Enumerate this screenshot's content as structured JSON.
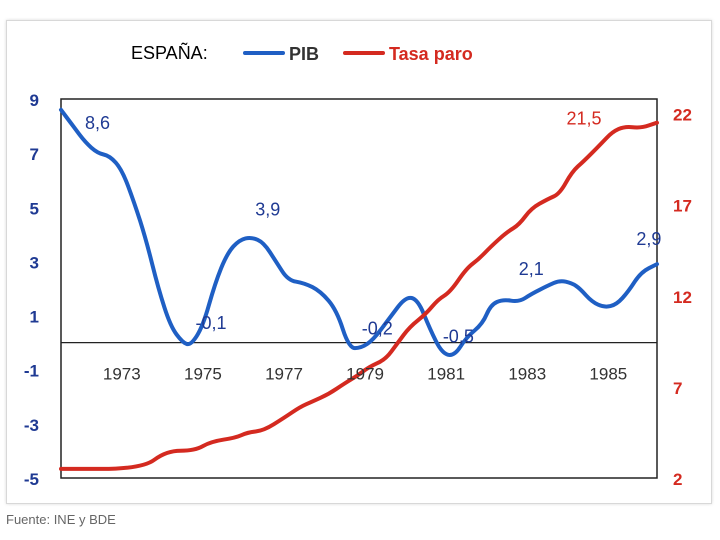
{
  "chart_data": {
    "type": "line",
    "title": "ESPAÑA:",
    "source": "Fuente: INE y BDE",
    "x_ticks": [
      "1973",
      "1975",
      "1977",
      "1979",
      "1981",
      "1983",
      "1985"
    ],
    "x_range": [
      1971.5,
      1986.2
    ],
    "y_left": {
      "min": -5,
      "max": 9,
      "ticks": [
        "9",
        "7",
        "5",
        "3",
        "1",
        "-1",
        "-3",
        "-5"
      ],
      "color": "#1F3A93"
    },
    "y_right": {
      "min": 2,
      "max": 22.8,
      "ticks": [
        "22",
        "17",
        "12",
        "7",
        "2"
      ],
      "color": "#D42A20"
    },
    "series": [
      {
        "name": "PIB",
        "axis": "left",
        "color": "#1F5FC4",
        "points": [
          [
            1971.5,
            8.6
          ],
          [
            1971.8,
            8.0
          ],
          [
            1972.1,
            7.4
          ],
          [
            1972.4,
            7.0
          ],
          [
            1972.7,
            6.9
          ],
          [
            1973.0,
            6.4
          ],
          [
            1973.3,
            5.2
          ],
          [
            1973.6,
            3.8
          ],
          [
            1973.9,
            2.0
          ],
          [
            1974.2,
            0.6
          ],
          [
            1974.5,
            0.0
          ],
          [
            1974.7,
            -0.1
          ],
          [
            1975.0,
            0.6
          ],
          [
            1975.3,
            2.2
          ],
          [
            1975.6,
            3.3
          ],
          [
            1975.9,
            3.8
          ],
          [
            1976.2,
            3.9
          ],
          [
            1976.5,
            3.7
          ],
          [
            1976.8,
            3.0
          ],
          [
            1977.1,
            2.3
          ],
          [
            1977.5,
            2.2
          ],
          [
            1977.9,
            1.9
          ],
          [
            1978.3,
            1.2
          ],
          [
            1978.6,
            -0.2
          ],
          [
            1978.9,
            -0.2
          ],
          [
            1979.2,
            0.1
          ],
          [
            1979.6,
            0.9
          ],
          [
            1980.0,
            1.7
          ],
          [
            1980.3,
            1.6
          ],
          [
            1980.6,
            0.5
          ],
          [
            1980.9,
            -0.4
          ],
          [
            1981.2,
            -0.5
          ],
          [
            1981.5,
            0.2
          ],
          [
            1981.9,
            0.7
          ],
          [
            1982.1,
            1.4
          ],
          [
            1982.4,
            1.6
          ],
          [
            1982.8,
            1.5
          ],
          [
            1983.1,
            1.8
          ],
          [
            1983.5,
            2.1
          ],
          [
            1983.8,
            2.3
          ],
          [
            1984.1,
            2.2
          ],
          [
            1984.3,
            2.0
          ],
          [
            1984.6,
            1.5
          ],
          [
            1984.9,
            1.3
          ],
          [
            1985.2,
            1.4
          ],
          [
            1985.5,
            1.9
          ],
          [
            1985.8,
            2.6
          ],
          [
            1986.2,
            2.9
          ]
        ],
        "labels": [
          {
            "text": "8,6",
            "x": 1972.4,
            "y": 7.9
          },
          {
            "text": "3,9",
            "x": 1976.6,
            "y": 4.7
          },
          {
            "text": "-0,1",
            "x": 1975.2,
            "y": 0.5
          },
          {
            "text": "-0,2",
            "x": 1979.3,
            "y": 0.3
          },
          {
            "text": "-0,5",
            "x": 1981.3,
            "y": 0.0
          },
          {
            "text": "2,1",
            "x": 1983.1,
            "y": 2.5
          },
          {
            "text": "2,9",
            "x": 1986.0,
            "y": 3.6
          }
        ]
      },
      {
        "name": "Tasa paro",
        "axis": "right",
        "color": "#D42A20",
        "points": [
          [
            1971.5,
            2.5
          ],
          [
            1973.5,
            2.5
          ],
          [
            1974.1,
            3.5
          ],
          [
            1974.8,
            3.5
          ],
          [
            1975.2,
            4.0
          ],
          [
            1975.8,
            4.2
          ],
          [
            1976.1,
            4.5
          ],
          [
            1976.5,
            4.6
          ],
          [
            1977.0,
            5.3
          ],
          [
            1977.4,
            5.9
          ],
          [
            1977.7,
            6.2
          ],
          [
            1978.1,
            6.6
          ],
          [
            1978.5,
            7.2
          ],
          [
            1978.8,
            7.6
          ],
          [
            1979.1,
            8.1
          ],
          [
            1979.5,
            8.5
          ],
          [
            1979.8,
            9.4
          ],
          [
            1980.1,
            10.3
          ],
          [
            1980.5,
            11.0
          ],
          [
            1980.8,
            11.8
          ],
          [
            1981.1,
            12.2
          ],
          [
            1981.5,
            13.5
          ],
          [
            1981.8,
            14.0
          ],
          [
            1982.1,
            14.7
          ],
          [
            1982.5,
            15.5
          ],
          [
            1982.8,
            15.9
          ],
          [
            1983.1,
            16.8
          ],
          [
            1983.5,
            17.3
          ],
          [
            1983.8,
            17.6
          ],
          [
            1984.1,
            18.8
          ],
          [
            1984.4,
            19.4
          ],
          [
            1984.8,
            20.3
          ],
          [
            1985.1,
            21.0
          ],
          [
            1985.4,
            21.3
          ],
          [
            1985.8,
            21.2
          ],
          [
            1986.2,
            21.5
          ]
        ],
        "labels": [
          {
            "text": "21,5",
            "x": 1984.4,
            "y": 21.4
          }
        ]
      }
    ],
    "legend": [
      {
        "label": "PIB",
        "color": "#1F5FC4"
      },
      {
        "label": "Tasa paro",
        "color": "#D42A20"
      }
    ]
  }
}
